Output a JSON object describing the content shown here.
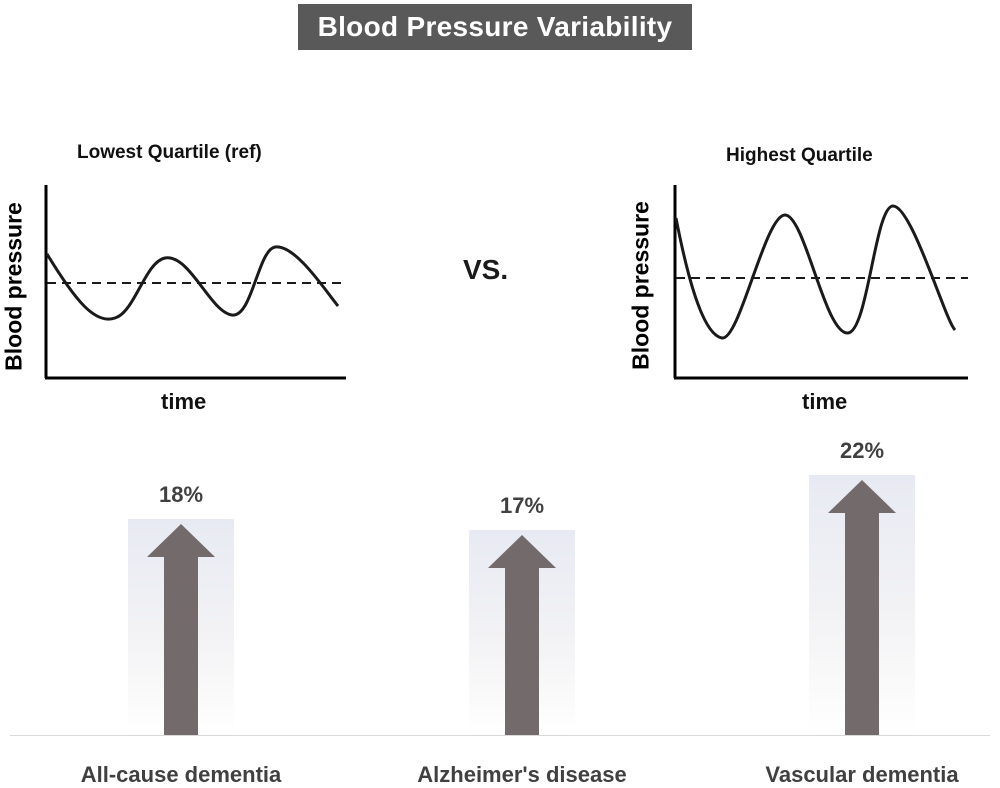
{
  "title": "Blood Pressure Variability",
  "vs_label": "VS.",
  "panels": [
    {
      "title": "Lowest Quartile (ref)",
      "ylabel": "Blood pressure",
      "xlabel": "time"
    },
    {
      "title": "Highest Quartile",
      "ylabel": "Blood pressure",
      "xlabel": "time"
    }
  ],
  "chart_data": {
    "type": "bar",
    "categories": [
      "All-cause dementia",
      "Alzheimer's disease",
      "Vascular dementia"
    ],
    "values": [
      18,
      17,
      22
    ],
    "value_labels": [
      "18%",
      "17%",
      "22%"
    ],
    "unit": "%",
    "title": "Blood Pressure Variability",
    "grid": false,
    "legend": "none",
    "mark": "upward arrow"
  },
  "colors": {
    "title_background": "#595959",
    "title_text": "#ffffff",
    "arrow": "#736b6b",
    "label_text": "#404040",
    "curve": "#1a1a1a"
  }
}
